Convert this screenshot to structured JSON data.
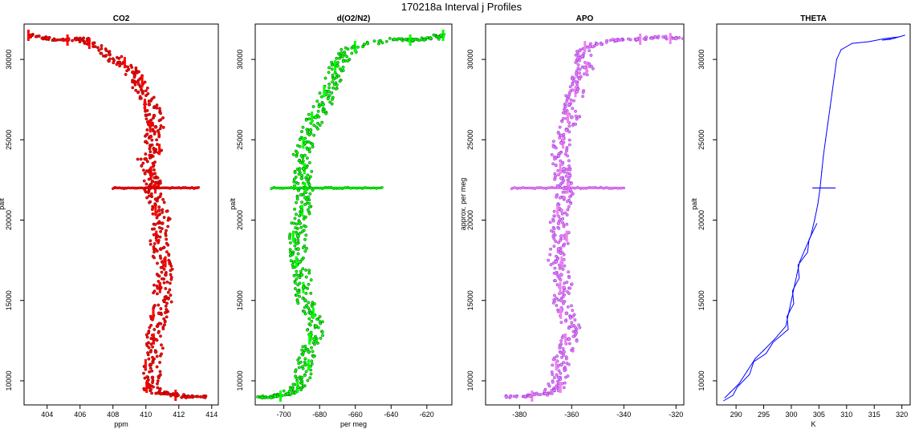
{
  "figure": {
    "main_title": "170218a   Interval j Profiles"
  },
  "chart_data": [
    {
      "type": "scatter",
      "title": "CO2",
      "xlabel": "ppm",
      "ylabel": "palt",
      "xlim": [
        402.6,
        414.4
      ],
      "ylim": [
        8500,
        32200
      ],
      "xticks": [
        404,
        406,
        408,
        410,
        412,
        414
      ],
      "yticks": [
        10000,
        15000,
        20000,
        25000,
        30000
      ],
      "colors": {
        "fill": "#ff0000",
        "edge": "#8b0000"
      },
      "series": [
        {
          "name": "CO2",
          "points": [
            {
              "x": 403.0,
              "y": 31500
            },
            {
              "x": 404.0,
              "y": 31300
            },
            {
              "x": 405.0,
              "y": 31200
            },
            {
              "x": 406.0,
              "y": 31300
            },
            {
              "x": 406.8,
              "y": 31000
            },
            {
              "x": 407.8,
              "y": 30300
            },
            {
              "x": 408.4,
              "y": 29800
            },
            {
              "x": 409.2,
              "y": 29200
            },
            {
              "x": 409.5,
              "y": 28600
            },
            {
              "x": 409.8,
              "y": 28000
            },
            {
              "x": 410.2,
              "y": 27200
            },
            {
              "x": 410.5,
              "y": 26500
            },
            {
              "x": 410.6,
              "y": 25800
            },
            {
              "x": 410.3,
              "y": 25200
            },
            {
              "x": 410.5,
              "y": 24400
            },
            {
              "x": 410.0,
              "y": 23800
            },
            {
              "x": 410.2,
              "y": 23000
            },
            {
              "x": 410.4,
              "y": 22400
            },
            {
              "x": 410.3,
              "y": 22000
            },
            {
              "x": 410.6,
              "y": 21300
            },
            {
              "x": 410.8,
              "y": 20600
            },
            {
              "x": 411.0,
              "y": 19800
            },
            {
              "x": 410.7,
              "y": 19000
            },
            {
              "x": 410.9,
              "y": 18200
            },
            {
              "x": 411.0,
              "y": 17400
            },
            {
              "x": 411.2,
              "y": 16600
            },
            {
              "x": 410.9,
              "y": 15800
            },
            {
              "x": 411.1,
              "y": 15000
            },
            {
              "x": 410.8,
              "y": 14200
            },
            {
              "x": 410.7,
              "y": 13400
            },
            {
              "x": 410.5,
              "y": 12600
            },
            {
              "x": 410.6,
              "y": 11800
            },
            {
              "x": 410.3,
              "y": 11000
            },
            {
              "x": 410.4,
              "y": 10200
            },
            {
              "x": 410.2,
              "y": 9600
            },
            {
              "x": 410.9,
              "y": 9200
            },
            {
              "x": 411.8,
              "y": 9100
            },
            {
              "x": 412.6,
              "y": 9000
            },
            {
              "x": 413.5,
              "y": 9000
            }
          ],
          "spikes": [
            {
              "y": 22000,
              "x_from": 408.0,
              "x_to": 413.2
            }
          ]
        }
      ]
    },
    {
      "type": "scatter",
      "title": "d(O2/N2)",
      "xlabel": "per meg",
      "ylabel": "palt",
      "xlim": [
        -716,
        -606
      ],
      "ylim": [
        8500,
        32200
      ],
      "xticks": [
        -700,
        -680,
        -660,
        -640,
        -620
      ],
      "yticks": [
        10000,
        15000,
        20000,
        25000,
        30000
      ],
      "colors": {
        "fill": "#00ff00",
        "edge": "#006400"
      },
      "series": [
        {
          "name": "d(O2/N2)",
          "points": [
            {
              "x": -612,
              "y": 31500
            },
            {
              "x": -618,
              "y": 31300
            },
            {
              "x": -628,
              "y": 31200
            },
            {
              "x": -638,
              "y": 31250
            },
            {
              "x": -661,
              "y": 30800
            },
            {
              "x": -667,
              "y": 30200
            },
            {
              "x": -670,
              "y": 29600
            },
            {
              "x": -672,
              "y": 28800
            },
            {
              "x": -675,
              "y": 28000
            },
            {
              "x": -678,
              "y": 27200
            },
            {
              "x": -682,
              "y": 26400
            },
            {
              "x": -685,
              "y": 25600
            },
            {
              "x": -688,
              "y": 24800
            },
            {
              "x": -690,
              "y": 24000
            },
            {
              "x": -689,
              "y": 23200
            },
            {
              "x": -690,
              "y": 22600
            },
            {
              "x": -689,
              "y": 22000
            },
            {
              "x": -688,
              "y": 21400
            },
            {
              "x": -690,
              "y": 20600
            },
            {
              "x": -691,
              "y": 19800
            },
            {
              "x": -692,
              "y": 19000
            },
            {
              "x": -692,
              "y": 18200
            },
            {
              "x": -691,
              "y": 17400
            },
            {
              "x": -690,
              "y": 16600
            },
            {
              "x": -689,
              "y": 15800
            },
            {
              "x": -688,
              "y": 15000
            },
            {
              "x": -685,
              "y": 14200
            },
            {
              "x": -682,
              "y": 13400
            },
            {
              "x": -683,
              "y": 12600
            },
            {
              "x": -686,
              "y": 11800
            },
            {
              "x": -688,
              "y": 11000
            },
            {
              "x": -690,
              "y": 10200
            },
            {
              "x": -692,
              "y": 9600
            },
            {
              "x": -698,
              "y": 9200
            },
            {
              "x": -705,
              "y": 9050
            },
            {
              "x": -712,
              "y": 8950
            }
          ],
          "spikes": [
            {
              "y": 22000,
              "x_from": -707,
              "x_to": -645
            }
          ]
        }
      ]
    },
    {
      "type": "scatter",
      "title": "APO",
      "xlabel": "",
      "ylabel": "approx. per meg",
      "xlim": [
        -393,
        -317
      ],
      "ylim": [
        8500,
        32200
      ],
      "xticks": [
        -380,
        -360,
        -340,
        -320
      ],
      "yticks": [
        10000,
        15000,
        20000,
        25000,
        30000
      ],
      "colors": {
        "fill": "#ee82ee",
        "edge": "#8a2be2"
      },
      "series": [
        {
          "name": "APO",
          "points": [
            {
              "x": -320,
              "y": 31300
            },
            {
              "x": -328,
              "y": 31400
            },
            {
              "x": -335,
              "y": 31250
            },
            {
              "x": -343,
              "y": 31200
            },
            {
              "x": -353,
              "y": 30800
            },
            {
              "x": -356,
              "y": 30200
            },
            {
              "x": -355,
              "y": 29500
            },
            {
              "x": -357,
              "y": 28800
            },
            {
              "x": -358,
              "y": 28000
            },
            {
              "x": -361,
              "y": 27200
            },
            {
              "x": -360,
              "y": 26400
            },
            {
              "x": -362,
              "y": 25600
            },
            {
              "x": -364,
              "y": 24800
            },
            {
              "x": -365,
              "y": 24000
            },
            {
              "x": -363,
              "y": 23200
            },
            {
              "x": -364,
              "y": 22600
            },
            {
              "x": -362,
              "y": 22000
            },
            {
              "x": -363,
              "y": 21400
            },
            {
              "x": -364,
              "y": 20600
            },
            {
              "x": -365,
              "y": 19800
            },
            {
              "x": -364,
              "y": 19000
            },
            {
              "x": -365,
              "y": 18200
            },
            {
              "x": -366,
              "y": 17400
            },
            {
              "x": -364,
              "y": 16600
            },
            {
              "x": -363,
              "y": 15800
            },
            {
              "x": -364,
              "y": 15000
            },
            {
              "x": -362,
              "y": 14200
            },
            {
              "x": -360,
              "y": 13400
            },
            {
              "x": -361,
              "y": 12600
            },
            {
              "x": -363,
              "y": 11800
            },
            {
              "x": -364,
              "y": 11000
            },
            {
              "x": -365,
              "y": 10200
            },
            {
              "x": -366,
              "y": 9600
            },
            {
              "x": -370,
              "y": 9200
            },
            {
              "x": -376,
              "y": 9050
            },
            {
              "x": -385,
              "y": 9000
            }
          ],
          "spikes": [
            {
              "y": 22000,
              "x_from": -383,
              "x_to": -340
            }
          ]
        }
      ]
    },
    {
      "type": "line",
      "title": "THETA",
      "xlabel": "K",
      "ylabel": "palt",
      "xlim": [
        286.5,
        321.5
      ],
      "ylim": [
        8500,
        32200
      ],
      "xticks": [
        290,
        295,
        300,
        305,
        310,
        315,
        320
      ],
      "yticks": [
        10000,
        15000,
        20000,
        25000,
        30000
      ],
      "colors": {
        "line": "#0000ff"
      },
      "series": [
        {
          "name": "THETA",
          "points": [
            {
              "x": 288.0,
              "y": 8950
            },
            {
              "x": 289.0,
              "y": 9300
            },
            {
              "x": 290.5,
              "y": 9800
            },
            {
              "x": 292.0,
              "y": 10600
            },
            {
              "x": 293.5,
              "y": 11400
            },
            {
              "x": 295.0,
              "y": 11900
            },
            {
              "x": 297.0,
              "y": 12600
            },
            {
              "x": 299.0,
              "y": 13400
            },
            {
              "x": 299.5,
              "y": 14200
            },
            {
              "x": 300.0,
              "y": 15000
            },
            {
              "x": 300.5,
              "y": 15800
            },
            {
              "x": 301.0,
              "y": 16600
            },
            {
              "x": 301.5,
              "y": 17400
            },
            {
              "x": 302.5,
              "y": 18200
            },
            {
              "x": 303.5,
              "y": 19000
            },
            {
              "x": 304.2,
              "y": 20000
            },
            {
              "x": 304.8,
              "y": 21000
            },
            {
              "x": 305.2,
              "y": 22000
            },
            {
              "x": 305.5,
              "y": 23000
            },
            {
              "x": 305.8,
              "y": 24000
            },
            {
              "x": 306.2,
              "y": 25000
            },
            {
              "x": 306.6,
              "y": 26000
            },
            {
              "x": 307.0,
              "y": 27000
            },
            {
              "x": 307.4,
              "y": 28000
            },
            {
              "x": 307.8,
              "y": 29000
            },
            {
              "x": 308.2,
              "y": 30000
            },
            {
              "x": 309.0,
              "y": 30600
            },
            {
              "x": 311.0,
              "y": 31000
            },
            {
              "x": 314.0,
              "y": 31100
            },
            {
              "x": 317.0,
              "y": 31300
            },
            {
              "x": 319.5,
              "y": 31400
            },
            {
              "x": 320.5,
              "y": 31500
            },
            {
              "x": 318.5,
              "y": 31300
            },
            {
              "x": 316.5,
              "y": 31200
            },
            {
              "x": 318.0,
              "y": 31250
            }
          ],
          "spikes": [
            {
              "y": 22000,
              "x_from": 303.8,
              "x_to": 308.0
            }
          ]
        }
      ]
    }
  ]
}
